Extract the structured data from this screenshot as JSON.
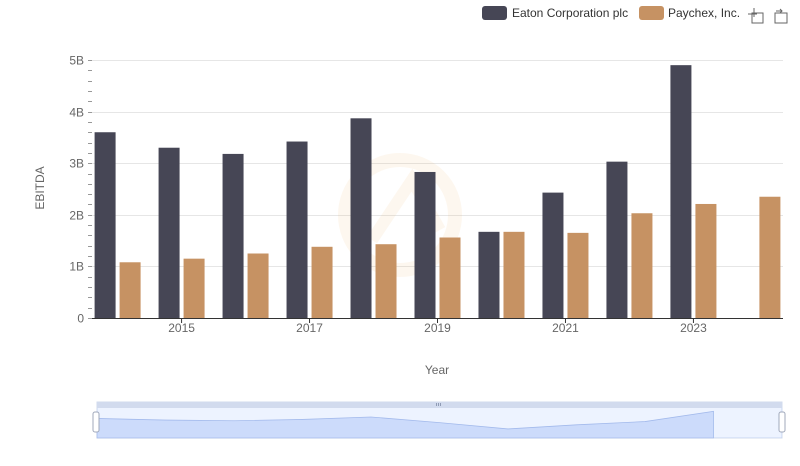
{
  "chart_data": {
    "type": "bar",
    "title": "",
    "xlabel": "Year",
    "ylabel": "EBITDA",
    "x": [
      2014,
      2015,
      2016,
      2017,
      2018,
      2019,
      2020,
      2021,
      2022,
      2023,
      2024
    ],
    "x_tick_labels": [
      "2015",
      "2017",
      "2019",
      "2021",
      "2023"
    ],
    "x_tick_values": [
      2015,
      2017,
      2019,
      2021,
      2023
    ],
    "y_tick_labels": [
      "0",
      "1B",
      "2B",
      "3B",
      "4B",
      "5B"
    ],
    "y_tick_values": [
      0,
      1000000000,
      2000000000,
      3000000000,
      4000000000,
      5000000000
    ],
    "ylim": [
      0,
      5000000000
    ],
    "grid": true,
    "legend_position": "top-right",
    "series": [
      {
        "name": "Eaton Corporation plc",
        "color": "#464655",
        "values": [
          3600000000,
          3300000000,
          3180000000,
          3420000000,
          3870000000,
          2830000000,
          1670000000,
          2430000000,
          3030000000,
          4900000000,
          null
        ]
      },
      {
        "name": "Paychex, Inc.",
        "color": "#c69263",
        "values": [
          1080000000,
          1150000000,
          1250000000,
          1380000000,
          1430000000,
          1560000000,
          1670000000,
          1650000000,
          2030000000,
          2210000000,
          2350000000
        ]
      }
    ]
  },
  "toolbar": {
    "icons": [
      "zoom-icon",
      "restore-icon"
    ]
  },
  "zoom_slider": {
    "window_start": 0,
    "window_end": 1,
    "fill_color": "#d9e3fb"
  }
}
